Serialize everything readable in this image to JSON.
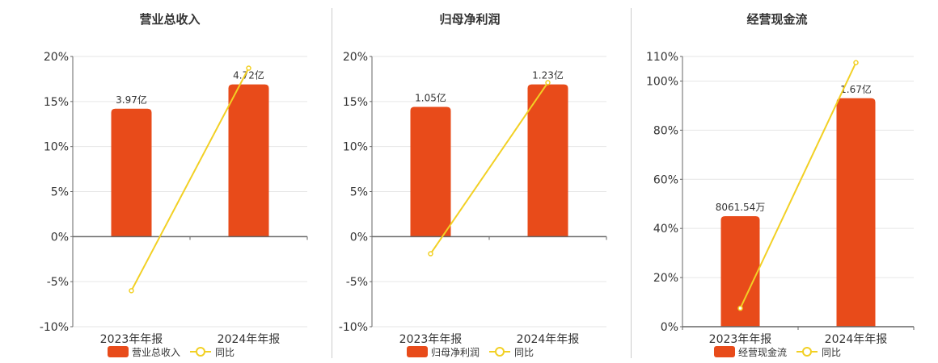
{
  "colors": {
    "bar": "#e84b1a",
    "line": "#f2d024",
    "axis": "#666666",
    "grid": "#e6e6e6",
    "text": "#333333"
  },
  "chart_data": [
    {
      "type": "bar",
      "title": "营业总收入",
      "categories": [
        "2023年年报",
        "2024年年报"
      ],
      "series": [
        {
          "name": "营业总收入",
          "type": "bar",
          "values": [
            14.2,
            16.9
          ],
          "labels": [
            "3.97亿",
            "4.72亿"
          ]
        },
        {
          "name": "同比",
          "type": "line",
          "values": [
            -6.0,
            18.7
          ]
        }
      ],
      "ylim": [
        -10,
        20
      ],
      "yticks": [
        -10,
        -5,
        0,
        5,
        10,
        15,
        20
      ],
      "ytick_labels": [
        "-10%",
        "-5%",
        "0%",
        "5%",
        "10%",
        "15%",
        "20%"
      ],
      "grid": true,
      "legend_position": "bottom"
    },
    {
      "type": "bar",
      "title": "归母净利润",
      "categories": [
        "2023年年报",
        "2024年年报"
      ],
      "series": [
        {
          "name": "归母净利润",
          "type": "bar",
          "values": [
            14.4,
            16.9
          ],
          "labels": [
            "1.05亿",
            "1.23亿"
          ]
        },
        {
          "name": "同比",
          "type": "line",
          "values": [
            -1.9,
            17.1
          ]
        }
      ],
      "ylim": [
        -10,
        20
      ],
      "yticks": [
        -10,
        -5,
        0,
        5,
        10,
        15,
        20
      ],
      "ytick_labels": [
        "-10%",
        "-5%",
        "0%",
        "5%",
        "10%",
        "15%",
        "20%"
      ],
      "grid": true,
      "legend_position": "bottom"
    },
    {
      "type": "bar",
      "title": "经营现金流",
      "categories": [
        "2023年年报",
        "2024年年报"
      ],
      "series": [
        {
          "name": "经营现金流",
          "type": "bar",
          "values": [
            45.0,
            93.0
          ],
          "labels": [
            "8061.54万",
            "1.67亿"
          ]
        },
        {
          "name": "同比",
          "type": "line",
          "values": [
            7.5,
            107.5
          ]
        }
      ],
      "ylim": [
        0,
        110
      ],
      "yticks": [
        0,
        20,
        40,
        60,
        80,
        100,
        110
      ],
      "ytick_labels": [
        "0%",
        "20%",
        "40%",
        "60%",
        "80%",
        "100%",
        "110%"
      ],
      "grid": true,
      "legend_position": "bottom"
    }
  ]
}
